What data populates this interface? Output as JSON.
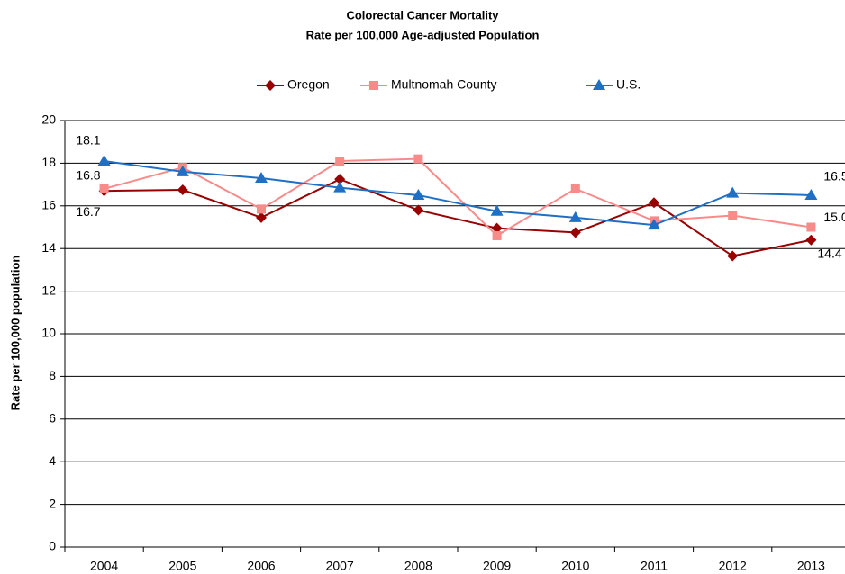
{
  "chart_data": {
    "type": "line",
    "title": "Colorectal Cancer Mortality",
    "subtitle": "Rate per 100,000 Age-adjusted Population",
    "y_label": "Rate per 100,000 population",
    "categories": [
      "2004",
      "2005",
      "2006",
      "2007",
      "2008",
      "2009",
      "2010",
      "2011",
      "2012",
      "2013"
    ],
    "series": [
      {
        "name": "Oregon",
        "color": "#990000",
        "marker": "diamond",
        "values": [
          16.7,
          16.75,
          15.45,
          17.25,
          15.8,
          14.95,
          14.75,
          16.15,
          13.65,
          14.4
        ],
        "value_labels": [
          "16.7",
          null,
          null,
          null,
          null,
          null,
          null,
          null,
          null,
          "14.4"
        ]
      },
      {
        "name": "Multnomah County",
        "color": "#f98a8a",
        "marker": "square",
        "values": [
          16.8,
          17.8,
          15.85,
          18.1,
          18.2,
          14.6,
          16.8,
          15.3,
          15.55,
          15.0
        ],
        "value_labels": [
          "16.8",
          null,
          null,
          null,
          null,
          null,
          null,
          null,
          null,
          "15.0"
        ]
      },
      {
        "name": "U.S.",
        "color": "#1f6fc5",
        "marker": "triangle",
        "values": [
          18.1,
          17.6,
          17.3,
          16.85,
          16.5,
          15.75,
          15.45,
          15.1,
          16.6,
          16.5
        ],
        "value_labels": [
          "18.1",
          null,
          null,
          null,
          null,
          null,
          null,
          null,
          null,
          "16.5"
        ]
      }
    ],
    "ylim": [
      0,
      20
    ],
    "yticks": [
      0,
      2,
      4,
      6,
      8,
      10,
      12,
      14,
      16,
      18,
      20
    ],
    "grid": true,
    "legend": "top"
  }
}
